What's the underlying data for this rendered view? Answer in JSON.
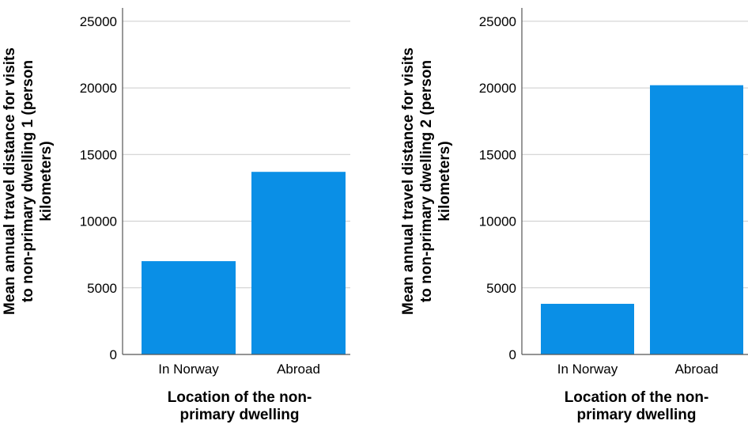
{
  "chart_data": [
    {
      "type": "bar",
      "categories": [
        "In Norway",
        "Abroad"
      ],
      "values": [
        7000,
        13700
      ],
      "xlabel": [
        "Location of the non-",
        "primary dwelling"
      ],
      "ylabel": [
        "Mean annual travel distance for visits",
        "to non-primary dwelling 1 (person",
        "kilometers)"
      ],
      "ylim": [
        0,
        26000
      ],
      "yticks": [
        0,
        5000,
        10000,
        15000,
        20000,
        25000
      ],
      "grid": true,
      "bar_color": "#0a8fe6"
    },
    {
      "type": "bar",
      "categories": [
        "In Norway",
        "Abroad"
      ],
      "values": [
        3800,
        20200
      ],
      "xlabel": [
        "Location of the non-",
        "primary dwelling"
      ],
      "ylabel": [
        "Mean annual travel distance for visits",
        "to non-primary dwelling 2 (person",
        "kilometers)"
      ],
      "ylim": [
        0,
        26000
      ],
      "yticks": [
        0,
        5000,
        10000,
        15000,
        20000,
        25000
      ],
      "grid": true,
      "bar_color": "#0a8fe6"
    }
  ]
}
